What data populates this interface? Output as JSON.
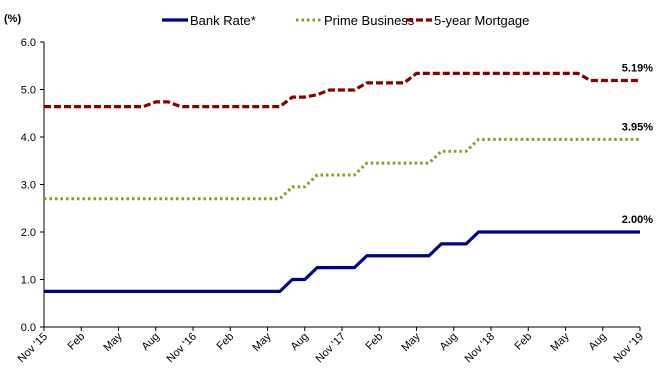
{
  "chart_data": {
    "type": "line",
    "y_unit": "(%)",
    "ylim": [
      0,
      6
    ],
    "y_ticks": [
      "0.0",
      "1.0",
      "2.0",
      "3.0",
      "4.0",
      "5.0",
      "6.0"
    ],
    "x_tick_labels": [
      "Nov '15",
      "Feb",
      "May",
      "Aug",
      "Nov '16",
      "Feb",
      "May",
      "Aug",
      "Nov '17",
      "Feb",
      "May",
      "Aug",
      "Nov '18",
      "Feb",
      "May",
      "Aug",
      "Nov '19"
    ],
    "x_months": [
      "Nov 2015",
      "Dec 2015",
      "Jan 2016",
      "Feb 2016",
      "Mar 2016",
      "Apr 2016",
      "May 2016",
      "Jun 2016",
      "Jul 2016",
      "Aug 2016",
      "Sep 2016",
      "Oct 2016",
      "Nov 2016",
      "Dec 2016",
      "Jan 2017",
      "Feb 2017",
      "Mar 2017",
      "Apr 2017",
      "May 2017",
      "Jun 2017",
      "Jul 2017",
      "Aug 2017",
      "Sep 2017",
      "Oct 2017",
      "Nov 2017",
      "Dec 2017",
      "Jan 2018",
      "Feb 2018",
      "Mar 2018",
      "Apr 2018",
      "May 2018",
      "Jun 2018",
      "Jul 2018",
      "Aug 2018",
      "Sep 2018",
      "Oct 2018",
      "Nov 2018",
      "Dec 2018",
      "Jan 2019",
      "Feb 2019",
      "Mar 2019",
      "Apr 2019",
      "May 2019",
      "Jun 2019",
      "Jul 2019",
      "Aug 2019",
      "Sep 2019",
      "Oct 2019",
      "Nov 2019"
    ],
    "grid": false,
    "legend_position": "top",
    "series": [
      {
        "name": "Bank Rate*",
        "color": "#00008B",
        "style": "solid",
        "end_label": "2.00%",
        "values": [
          0.75,
          0.75,
          0.75,
          0.75,
          0.75,
          0.75,
          0.75,
          0.75,
          0.75,
          0.75,
          0.75,
          0.75,
          0.75,
          0.75,
          0.75,
          0.75,
          0.75,
          0.75,
          0.75,
          0.75,
          1.0,
          1.0,
          1.25,
          1.25,
          1.25,
          1.25,
          1.5,
          1.5,
          1.5,
          1.5,
          1.5,
          1.5,
          1.75,
          1.75,
          1.75,
          2.0,
          2.0,
          2.0,
          2.0,
          2.0,
          2.0,
          2.0,
          2.0,
          2.0,
          2.0,
          2.0,
          2.0,
          2.0,
          2.0
        ]
      },
      {
        "name": "Prime Business",
        "color": "#8C9B1F",
        "style": "dotted",
        "end_label": "3.95%",
        "values": [
          2.7,
          2.7,
          2.7,
          2.7,
          2.7,
          2.7,
          2.7,
          2.7,
          2.7,
          2.7,
          2.7,
          2.7,
          2.7,
          2.7,
          2.7,
          2.7,
          2.7,
          2.7,
          2.7,
          2.7,
          2.95,
          2.95,
          3.2,
          3.2,
          3.2,
          3.2,
          3.45,
          3.45,
          3.45,
          3.45,
          3.45,
          3.45,
          3.7,
          3.7,
          3.7,
          3.95,
          3.95,
          3.95,
          3.95,
          3.95,
          3.95,
          3.95,
          3.95,
          3.95,
          3.95,
          3.95,
          3.95,
          3.95,
          3.95
        ]
      },
      {
        "name": "5-year Mortgage",
        "color": "#8B0000",
        "style": "dashed",
        "end_label": "5.19%",
        "values": [
          4.64,
          4.64,
          4.64,
          4.64,
          4.64,
          4.64,
          4.64,
          4.64,
          4.64,
          4.74,
          4.74,
          4.64,
          4.64,
          4.64,
          4.64,
          4.64,
          4.64,
          4.64,
          4.64,
          4.64,
          4.84,
          4.84,
          4.89,
          4.99,
          4.99,
          4.99,
          5.14,
          5.14,
          5.14,
          5.14,
          5.34,
          5.34,
          5.34,
          5.34,
          5.34,
          5.34,
          5.34,
          5.34,
          5.34,
          5.34,
          5.34,
          5.34,
          5.34,
          5.34,
          5.19,
          5.19,
          5.19,
          5.19,
          5.19
        ]
      }
    ]
  }
}
